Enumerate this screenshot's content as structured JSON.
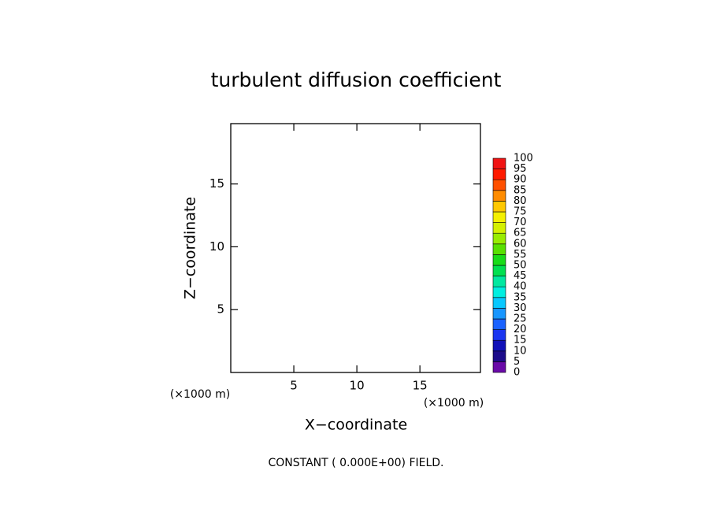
{
  "chart_data": {
    "type": "contour",
    "title": "turbulent diffusion coefficient",
    "xlabel": "X−coordinate",
    "ylabel": "Z−coordinate",
    "xunit": "(×1000 m)",
    "yunit": "(×1000 m)",
    "annotation": "CONSTANT ( 0.000E+00) FIELD.",
    "xlim": [
      0,
      19.8
    ],
    "ylim": [
      0,
      19.8
    ],
    "xticks": [
      5,
      10,
      15
    ],
    "yticks": [
      5,
      10,
      15
    ],
    "levels": [
      0,
      5,
      10,
      15,
      20,
      25,
      30,
      35,
      40,
      45,
      50,
      55,
      60,
      65,
      70,
      75,
      80,
      85,
      90,
      95,
      100
    ],
    "level_colors": [
      "#6a0aa8",
      "#1c0c8a",
      "#1010b8",
      "#1a36f0",
      "#1a62ff",
      "#1896ff",
      "#08c8ff",
      "#00eee0",
      "#00e8a0",
      "#00e050",
      "#18dc18",
      "#58e000",
      "#98ec00",
      "#d4f000",
      "#f4f000",
      "#ffc800",
      "#ff8c00",
      "#ff5000",
      "#ff1a00",
      "#f01414",
      "#f08080"
    ]
  }
}
